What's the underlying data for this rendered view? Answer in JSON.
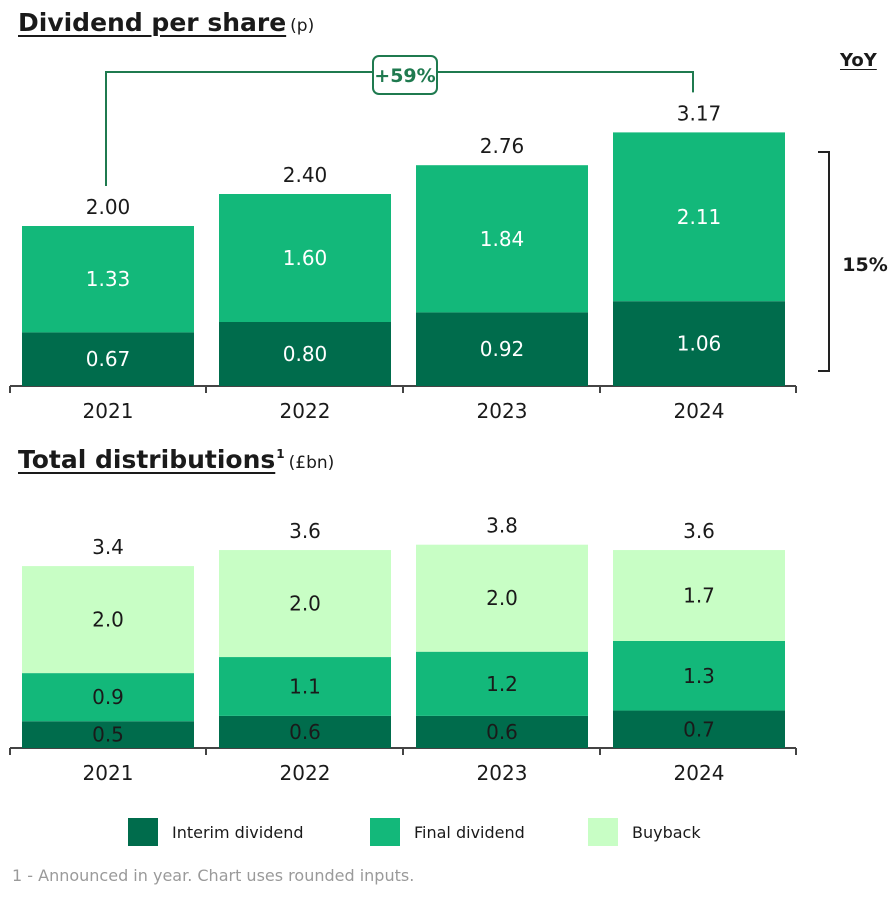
{
  "colors": {
    "interim": "#006C4C",
    "final": "#13B87A",
    "buyback": "#C8FEC5",
    "axis": "#444444",
    "bracket": "#1F7A4F",
    "text": "#1a1a1a"
  },
  "dps": {
    "title": "Dividend per share",
    "unit": "(p)",
    "yoy_label": "YoY",
    "yoy_value": "15%",
    "growth_label": "+59%"
  },
  "dist": {
    "title": "Total distributions",
    "title_sup": "1",
    "unit": "(£bn)"
  },
  "legend": [
    {
      "label": "Interim dividend",
      "color": "#006C4C"
    },
    {
      "label": "Final dividend",
      "color": "#13B87A"
    },
    {
      "label": "Buyback",
      "color": "#C8FEC5"
    }
  ],
  "footnote": "1 - Announced in year. Chart uses rounded inputs.",
  "chart_data": [
    {
      "type": "bar",
      "stacked": true,
      "title": "Dividend per share",
      "ylabel": "(p)",
      "categories": [
        "2021",
        "2022",
        "2023",
        "2024"
      ],
      "series": [
        {
          "name": "Interim dividend",
          "values": [
            0.67,
            0.8,
            0.92,
            1.06
          ],
          "labels": [
            "0.67",
            "0.80",
            "0.92",
            "1.06"
          ]
        },
        {
          "name": "Final dividend",
          "values": [
            1.33,
            1.6,
            1.84,
            2.11
          ],
          "labels": [
            "1.33",
            "1.60",
            "1.84",
            "2.11"
          ]
        }
      ],
      "totals": [
        "2.00",
        "2.40",
        "2.76",
        "3.17"
      ],
      "ylim": [
        0,
        3.4
      ],
      "annotations": [
        {
          "text": "+59%",
          "from": "2021",
          "to": "2024"
        },
        {
          "text": "15%",
          "note": "YoY"
        }
      ]
    },
    {
      "type": "bar",
      "stacked": true,
      "title": "Total distributions",
      "ylabel": "(£bn)",
      "categories": [
        "2021",
        "2022",
        "2023",
        "2024"
      ],
      "series": [
        {
          "name": "Interim dividend",
          "values": [
            0.5,
            0.6,
            0.6,
            0.7
          ],
          "labels": [
            "0.5",
            "0.6",
            "0.6",
            "0.7"
          ]
        },
        {
          "name": "Final dividend",
          "values": [
            0.9,
            1.1,
            1.2,
            1.3
          ],
          "labels": [
            "0.9",
            "1.1",
            "1.2",
            "1.3"
          ]
        },
        {
          "name": "Buyback",
          "values": [
            2.0,
            2.0,
            2.0,
            1.7
          ],
          "labels": [
            "2.0",
            "2.0",
            "2.0",
            "1.7"
          ]
        }
      ],
      "totals": [
        "3.4",
        "3.6",
        "3.8",
        "3.6"
      ],
      "ylim": [
        0,
        3.8
      ]
    }
  ]
}
